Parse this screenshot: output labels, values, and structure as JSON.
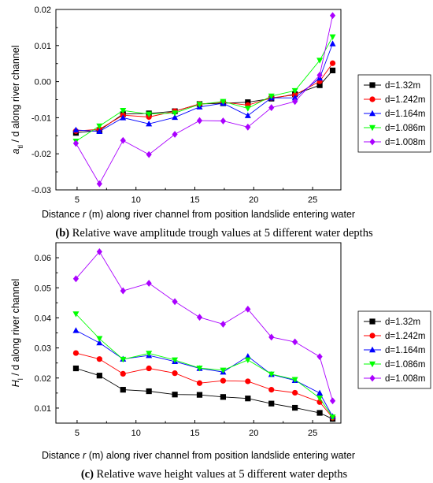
{
  "chart_data": [
    {
      "type": "line",
      "ylabel": "a_tl / d along river channel",
      "xlabel": "Distance r (m) along river channel from position landslide entering water",
      "caption_prefix": "(b)",
      "caption": "Relative wave amplitude trough values at 5 different water depths",
      "xticks": [
        "5",
        "10",
        "15",
        "20",
        "25"
      ],
      "yticks": [
        "0.02",
        "0.01",
        "0.00",
        "-0.01",
        "-0.02",
        "-0.03"
      ],
      "xlim": [
        3.2,
        27.4
      ],
      "ylim": [
        -0.03,
        0.02
      ],
      "grid": false,
      "legend_position": "right",
      "x": [
        4.9,
        6.9,
        8.9,
        11.1,
        13.3,
        15.4,
        17.4,
        19.5,
        21.5,
        23.5,
        25.6,
        26.7
      ],
      "series": [
        {
          "name": "d=1.32m",
          "marker": "square",
          "color": "#000000",
          "values": [
            -0.0142,
            -0.0135,
            -0.009,
            -0.0088,
            -0.0082,
            -0.0062,
            -0.006,
            -0.0057,
            -0.0047,
            -0.0035,
            -0.001,
            0.0031
          ]
        },
        {
          "name": "d=1.242m",
          "marker": "circle",
          "color": "#ff0000",
          "values": [
            -0.0137,
            -0.0132,
            -0.0093,
            -0.0098,
            -0.0082,
            -0.0062,
            -0.0057,
            -0.0065,
            -0.0045,
            -0.0037,
            0.0001,
            0.0051
          ]
        },
        {
          "name": "d=1.164m",
          "marker": "triangle-up",
          "color": "#0000ff",
          "values": [
            -0.0134,
            -0.0138,
            -0.01,
            -0.0117,
            -0.0099,
            -0.007,
            -0.006,
            -0.0094,
            -0.0045,
            -0.0045,
            0.001,
            0.0105
          ]
        },
        {
          "name": "d=1.086m",
          "marker": "triangle-down",
          "color": "#00ff00",
          "values": [
            -0.0165,
            -0.0123,
            -0.008,
            -0.009,
            -0.0087,
            -0.0063,
            -0.0055,
            -0.0074,
            -0.004,
            -0.0025,
            0.0059,
            0.0124
          ]
        },
        {
          "name": "d=1.008m",
          "marker": "diamond",
          "color": "#aa00ff",
          "values": [
            -0.0171,
            -0.0283,
            -0.0163,
            -0.0202,
            -0.0146,
            -0.0108,
            -0.0109,
            -0.0126,
            -0.0072,
            -0.0055,
            0.0018,
            0.0183
          ]
        }
      ]
    },
    {
      "type": "line",
      "ylabel": "H_l / d along river channel",
      "xlabel": "Distance r (m) along river channel from position landslide entering water",
      "caption_prefix": "(c)",
      "caption": "Relative wave height values at 5 different water depths",
      "xticks": [
        "5",
        "10",
        "15",
        "20",
        "25"
      ],
      "yticks": [
        "0.06",
        "0.05",
        "0.04",
        "0.03",
        "0.02",
        "0.01"
      ],
      "xlim": [
        3.2,
        27.4
      ],
      "ylim": [
        0.005,
        0.065
      ],
      "grid": false,
      "legend_position": "right",
      "x": [
        4.9,
        6.9,
        8.9,
        11.1,
        13.3,
        15.4,
        17.4,
        19.5,
        21.5,
        23.5,
        25.6,
        26.7
      ],
      "series": [
        {
          "name": "d=1.32m",
          "marker": "square",
          "color": "#000000",
          "values": [
            0.0232,
            0.0208,
            0.0161,
            0.0156,
            0.0145,
            0.0144,
            0.0137,
            0.0132,
            0.0115,
            0.0101,
            0.0084,
            0.0064
          ]
        },
        {
          "name": "d=1.242m",
          "marker": "circle",
          "color": "#ff0000",
          "values": [
            0.0283,
            0.0263,
            0.0214,
            0.0232,
            0.0216,
            0.0183,
            0.0191,
            0.0189,
            0.0161,
            0.0151,
            0.012,
            0.0068
          ]
        },
        {
          "name": "d=1.164m",
          "marker": "triangle-up",
          "color": "#0000ff",
          "values": [
            0.0358,
            0.0317,
            0.0263,
            0.0275,
            0.0255,
            0.0232,
            0.022,
            0.0272,
            0.0212,
            0.0192,
            0.015,
            0.0072
          ]
        },
        {
          "name": "d=1.086m",
          "marker": "triangle-down",
          "color": "#00ff00",
          "values": [
            0.0413,
            0.0331,
            0.0262,
            0.0282,
            0.026,
            0.0233,
            0.0226,
            0.026,
            0.0213,
            0.0195,
            0.0133,
            0.007
          ]
        },
        {
          "name": "d=1.008m",
          "marker": "diamond",
          "color": "#aa00ff",
          "values": [
            0.053,
            0.062,
            0.049,
            0.0515,
            0.0454,
            0.0402,
            0.0379,
            0.0429,
            0.0336,
            0.032,
            0.0271,
            0.0124
          ]
        }
      ]
    }
  ]
}
